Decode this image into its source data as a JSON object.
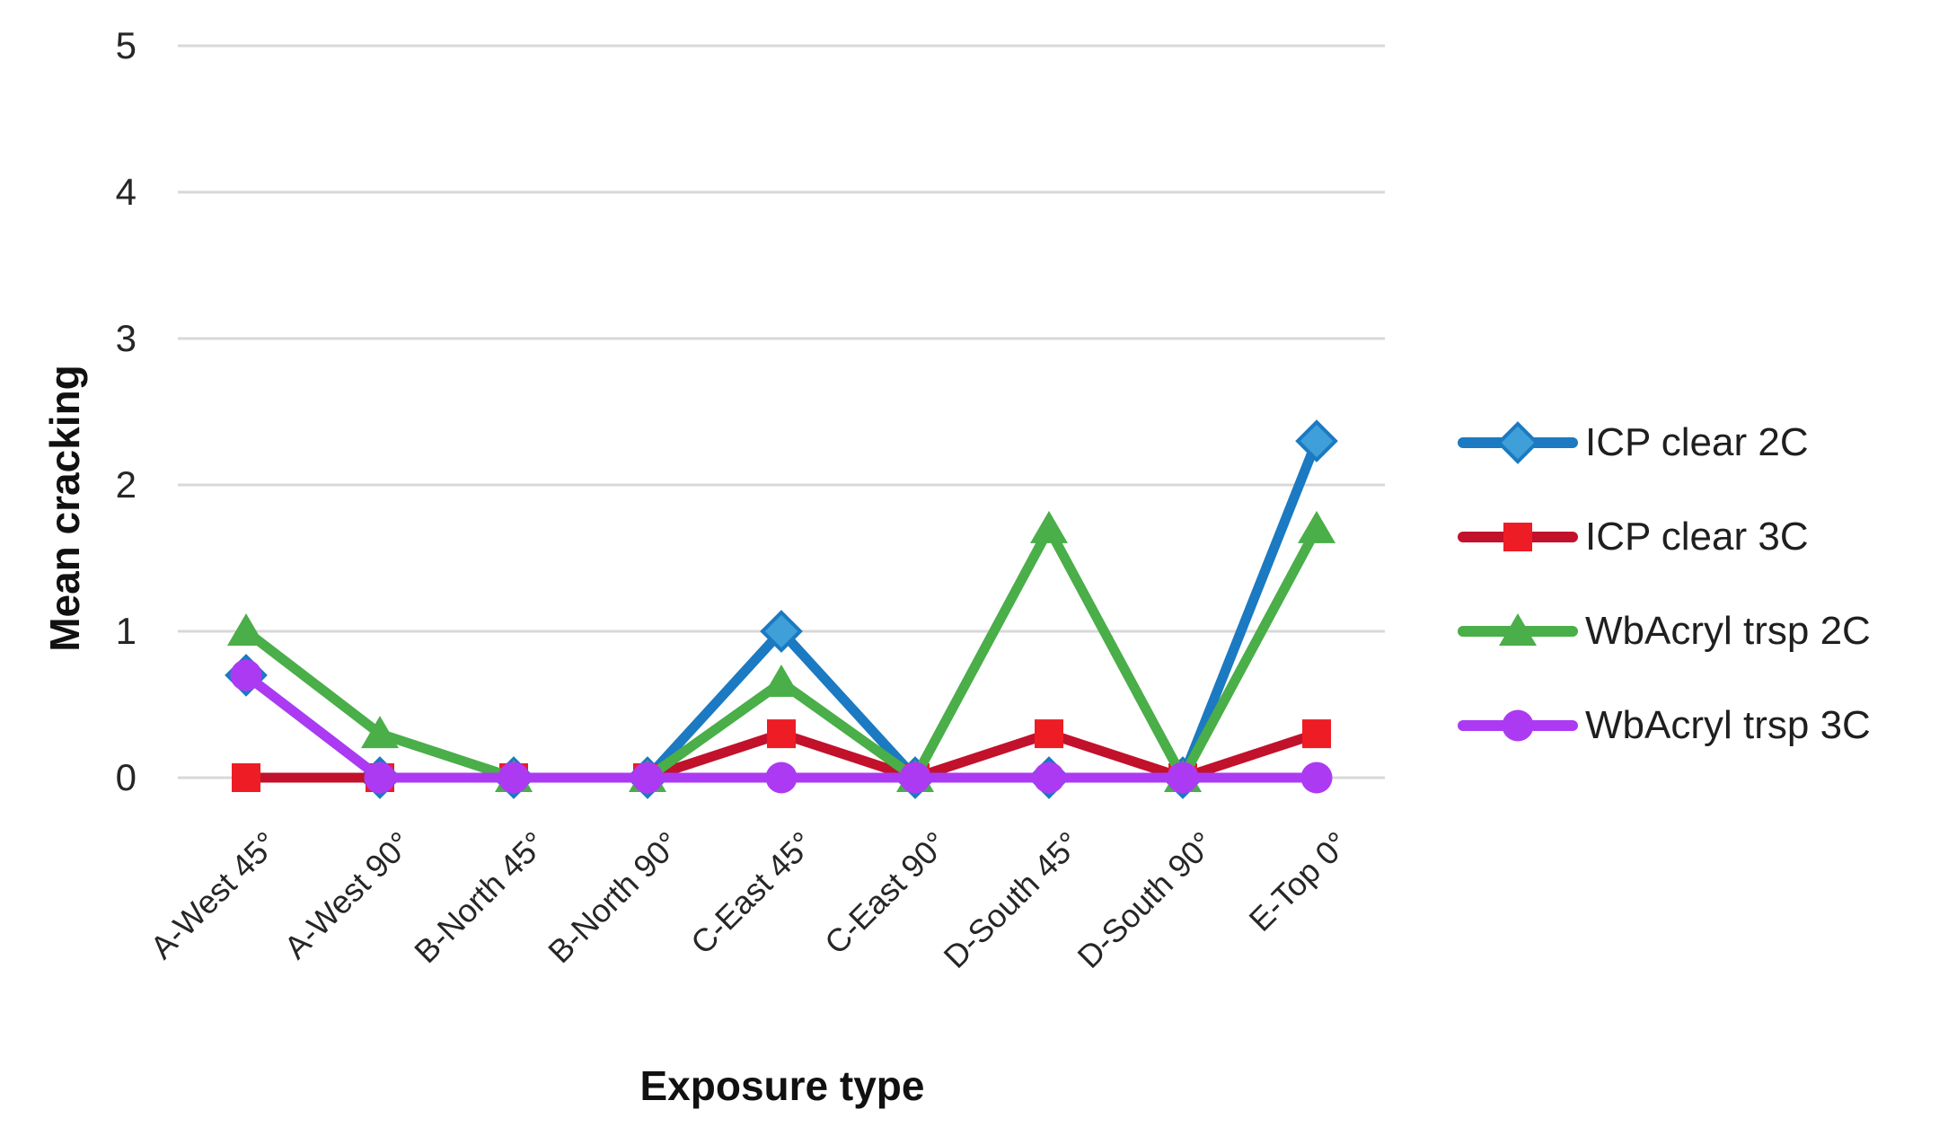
{
  "chart_data": {
    "type": "line",
    "title": "",
    "xlabel": "Exposure type",
    "ylabel": "Mean cracking",
    "categories": [
      "A-West 45°",
      "A-West 90°",
      "B-North 45°",
      "B-North 90°",
      "C-East 45°",
      "C-East 90°",
      "D-South 45°",
      "D-South 90°",
      "E-Top 0°"
    ],
    "series": [
      {
        "name": "ICP clear 2C",
        "marker": "diamond",
        "line_color": "#1B7AC1",
        "marker_fill": "#3F9FD8",
        "values": [
          0.7,
          0,
          0,
          0,
          1,
          0,
          0,
          0,
          2.3
        ]
      },
      {
        "name": "ICP clear 3C",
        "marker": "square",
        "line_color": "#C2112B",
        "marker_fill": "#EE1C25",
        "values": [
          0,
          0,
          0,
          0,
          0.3,
          0,
          0.3,
          0,
          0.3
        ]
      },
      {
        "name": "WbAcryl trsp 2C",
        "marker": "triangle",
        "line_color": "#4AAE49",
        "marker_fill": "#4AAE49",
        "values": [
          1,
          0.3,
          0,
          0,
          0.65,
          0,
          1.7,
          0,
          1.7
        ]
      },
      {
        "name": "WbAcryl trsp 3C",
        "marker": "circle",
        "line_color": "#AC3AF3",
        "marker_fill": "#AC3AF3",
        "values": [
          0.7,
          0,
          0,
          0,
          0,
          0,
          0,
          0,
          0
        ]
      }
    ],
    "y_ticks": [
      0,
      1,
      2,
      3,
      4,
      5
    ],
    "ylim": [
      0,
      5
    ],
    "grid": true,
    "legend_position": "right"
  },
  "colors": {
    "gridline": "#D8D8D8",
    "tick_text": "#262626",
    "axis_title_text": "#111111",
    "legend_text": "#1F1F1F",
    "background": "#FFFFFF"
  }
}
